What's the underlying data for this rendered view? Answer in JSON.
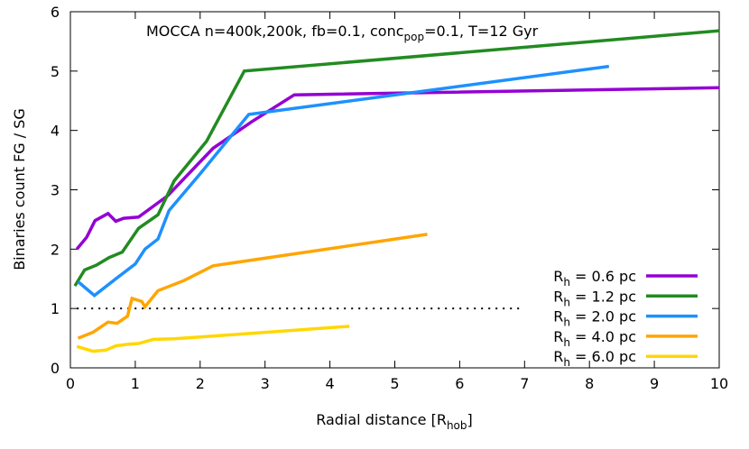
{
  "chart_data": {
    "type": "line",
    "title": {
      "prefix": "MOCCA n=400k,200k, fb=0.1, conc",
      "sub": "pop",
      "suffix": "=0.1, T=12 Gyr"
    },
    "xlabel": {
      "prefix": "Radial distance [R",
      "sub": "hob",
      "suffix": "]"
    },
    "ylabel": "Binaries count FG / SG",
    "xlim": [
      0,
      10
    ],
    "ylim": [
      0,
      6
    ],
    "xticks": [
      0,
      1,
      2,
      3,
      4,
      5,
      6,
      7,
      8,
      9,
      10
    ],
    "yticks": [
      0,
      1,
      2,
      3,
      4,
      5,
      6
    ],
    "grid": false,
    "legend_position": "bottom-right",
    "reference_line": {
      "y": 1,
      "x_range": [
        0.1,
        6.95
      ],
      "style": "dotted"
    },
    "series": [
      {
        "name_main": "R",
        "name_sub": "h",
        "name_rest": " = 0.6 pc",
        "color": "#9400d3",
        "points": [
          [
            0.1,
            2.0
          ],
          [
            0.25,
            2.2
          ],
          [
            0.38,
            2.48
          ],
          [
            0.58,
            2.6
          ],
          [
            0.7,
            2.47
          ],
          [
            0.82,
            2.52
          ],
          [
            1.05,
            2.54
          ],
          [
            1.5,
            2.9
          ],
          [
            2.2,
            3.7
          ],
          [
            2.8,
            4.15
          ],
          [
            3.45,
            4.6
          ],
          [
            10,
            4.72
          ]
        ]
      },
      {
        "name_main": "R",
        "name_sub": "h",
        "name_rest": " = 1.2 pc",
        "color": "#228b22",
        "points": [
          [
            0.07,
            1.38
          ],
          [
            0.22,
            1.65
          ],
          [
            0.4,
            1.73
          ],
          [
            0.6,
            1.86
          ],
          [
            0.8,
            1.95
          ],
          [
            1.05,
            2.35
          ],
          [
            1.35,
            2.58
          ],
          [
            1.6,
            3.15
          ],
          [
            2.1,
            3.82
          ],
          [
            2.68,
            5.0
          ],
          [
            10,
            5.68
          ]
        ]
      },
      {
        "name_main": "R",
        "name_sub": "h",
        "name_rest": " = 2.0 pc",
        "color": "#1e90ff",
        "points": [
          [
            0.12,
            1.45
          ],
          [
            0.37,
            1.22
          ],
          [
            0.7,
            1.5
          ],
          [
            1.0,
            1.75
          ],
          [
            1.15,
            2.0
          ],
          [
            1.35,
            2.17
          ],
          [
            1.52,
            2.65
          ],
          [
            2.0,
            3.27
          ],
          [
            2.75,
            4.27
          ],
          [
            8.3,
            5.08
          ]
        ]
      },
      {
        "name_main": "R",
        "name_sub": "h",
        "name_rest": " = 4.0 pc",
        "color": "#ffa500",
        "points": [
          [
            0.12,
            0.5
          ],
          [
            0.35,
            0.6
          ],
          [
            0.58,
            0.77
          ],
          [
            0.72,
            0.75
          ],
          [
            0.88,
            0.87
          ],
          [
            0.95,
            1.17
          ],
          [
            1.1,
            1.12
          ],
          [
            1.15,
            1.03
          ],
          [
            1.35,
            1.3
          ],
          [
            1.75,
            1.47
          ],
          [
            2.2,
            1.72
          ],
          [
            5.5,
            2.25
          ]
        ]
      },
      {
        "name_main": "R",
        "name_sub": "h",
        "name_rest": " = 6.0 pc",
        "color": "#ffd700",
        "points": [
          [
            0.1,
            0.36
          ],
          [
            0.35,
            0.28
          ],
          [
            0.55,
            0.3
          ],
          [
            0.7,
            0.37
          ],
          [
            0.9,
            0.4
          ],
          [
            1.05,
            0.41
          ],
          [
            1.28,
            0.48
          ],
          [
            1.6,
            0.49
          ],
          [
            2.0,
            0.52
          ],
          [
            4.3,
            0.7
          ]
        ]
      }
    ]
  }
}
